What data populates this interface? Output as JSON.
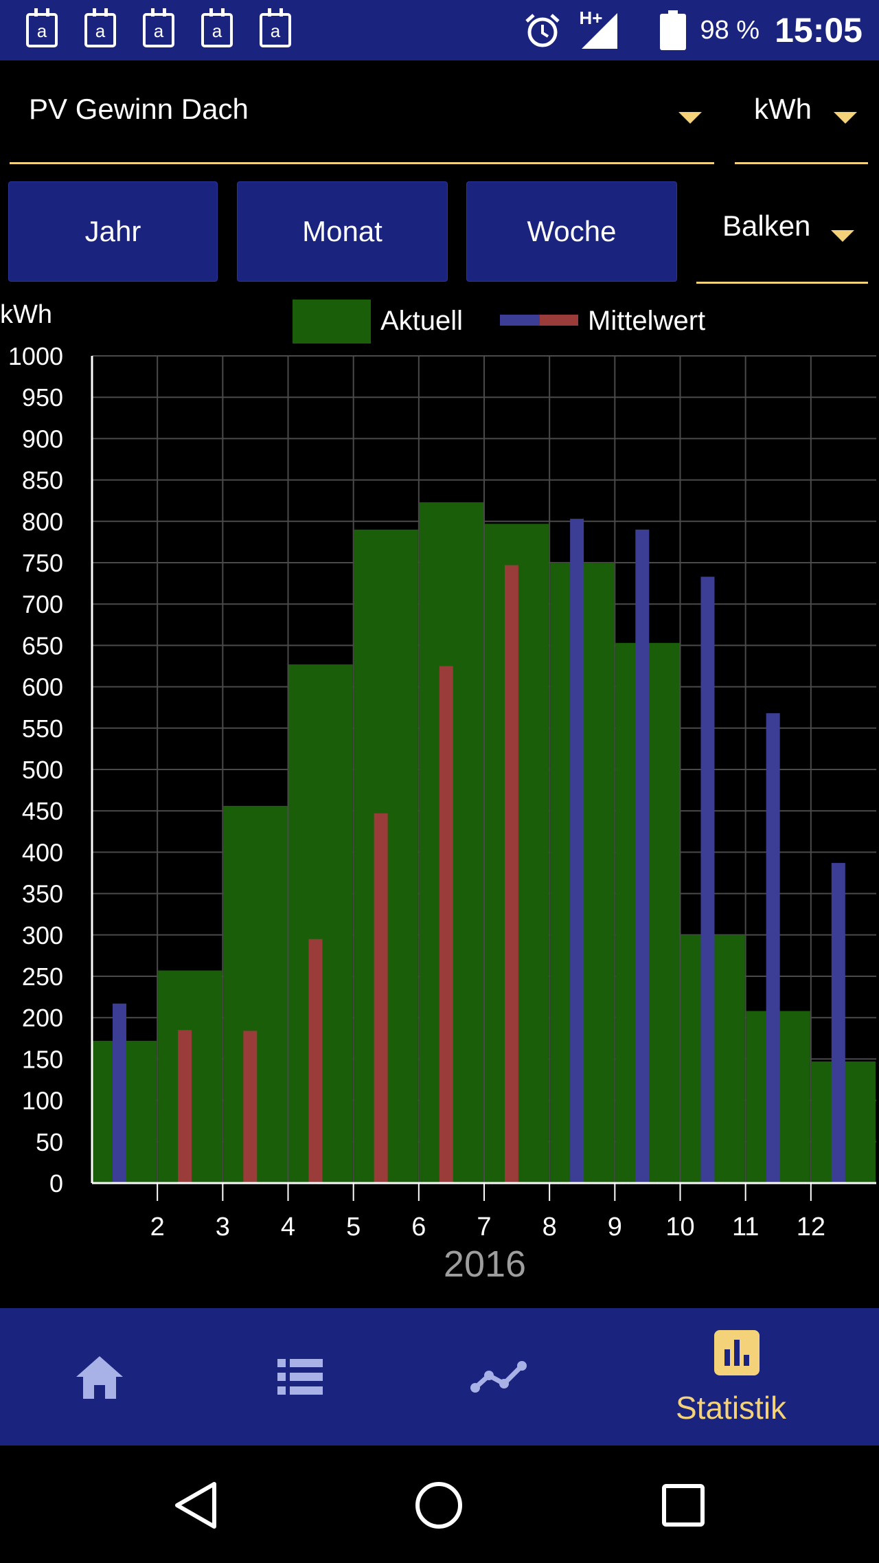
{
  "status_bar": {
    "calendar_icons": [
      "a",
      "a",
      "a",
      "a",
      "a"
    ],
    "network": "H+",
    "battery": "98 %",
    "time": "15:05"
  },
  "controls": {
    "data_source": "PV Gewinn Dach",
    "unit": "kWh",
    "period_buttons": [
      "Jahr",
      "Monat",
      "Woche"
    ],
    "chart_style": "Balken"
  },
  "colors": {
    "header": "#1a237e",
    "accent": "#f4d27a",
    "bar_current": "#1a5e0a",
    "avg_past": "#9a3c3a",
    "avg_future": "#3c3e96"
  },
  "chart_data": {
    "type": "bar",
    "ylabel": "kWh",
    "xlabel": "2016",
    "ylim": [
      0,
      1000
    ],
    "yticks": [
      0,
      50,
      100,
      150,
      200,
      250,
      300,
      350,
      400,
      450,
      500,
      550,
      600,
      650,
      700,
      750,
      800,
      850,
      900,
      950,
      1000
    ],
    "categories": [
      "1",
      "2",
      "3",
      "4",
      "5",
      "6",
      "7",
      "8",
      "9",
      "10",
      "11",
      "12"
    ],
    "x_tick_labels": [
      "",
      "2",
      "3",
      "4",
      "5",
      "6",
      "7",
      "8",
      "9",
      "10",
      "11",
      "12"
    ],
    "grid": true,
    "legend": "top",
    "series": [
      {
        "name": "Aktuell",
        "values": [
          172,
          257,
          456,
          627,
          790,
          823,
          797,
          750,
          653,
          300,
          208,
          147
        ]
      },
      {
        "name": "Mittelwert",
        "values": [
          217,
          185,
          184,
          295,
          447,
          625,
          747,
          803,
          790,
          733,
          568,
          387
        ],
        "value_colors": [
          "avg_future",
          "avg_past",
          "avg_past",
          "avg_past",
          "avg_past",
          "avg_past",
          "avg_past",
          "avg_future",
          "avg_future",
          "avg_future",
          "avg_future",
          "avg_future"
        ]
      }
    ]
  },
  "bottom_nav": {
    "items": [
      "home-icon",
      "list-icon",
      "trend-icon",
      "statistics-icon"
    ],
    "active_label": "Statistik"
  }
}
